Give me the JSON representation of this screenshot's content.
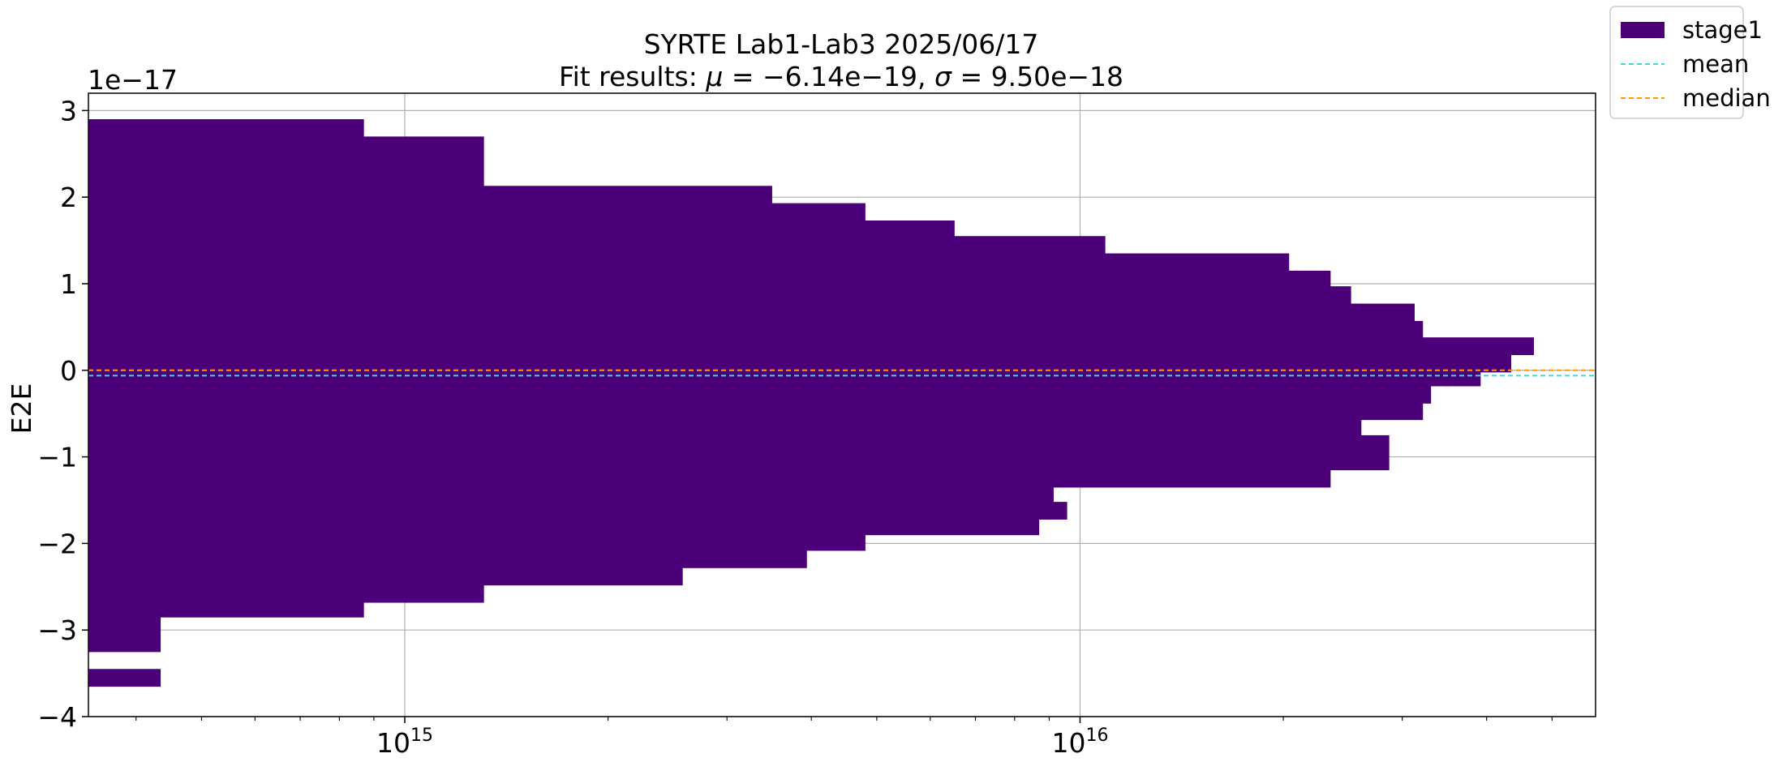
{
  "chart_data": {
    "type": "histogram-horizontal",
    "title_line1": "SYRTE Lab1-Lab3 2025/06/17",
    "title_line2_prefix": "Fit results: ",
    "mu": "−6.14e−19",
    "sigma": "9.50e−18",
    "ylabel": "E2E",
    "y_offset_label": "1e−17",
    "x_scale": "log",
    "xlim": [
      340000000000000,
      58000000000000000
    ],
    "ylim": [
      -4e-17,
      3.2e-17
    ],
    "x_ticks": [
      {
        "value": 1000000000000000.0,
        "base": "10",
        "exp": "15"
      },
      {
        "value": 1e+16,
        "base": "10",
        "exp": "16"
      }
    ],
    "y_ticks": [
      {
        "value": -4e-17,
        "label": "−4"
      },
      {
        "value": -3e-17,
        "label": "−3"
      },
      {
        "value": -2e-17,
        "label": "−2"
      },
      {
        "value": -1e-17,
        "label": "−1"
      },
      {
        "value": 0,
        "label": "0"
      },
      {
        "value": 1e-17,
        "label": "1"
      },
      {
        "value": 2e-17,
        "label": "2"
      },
      {
        "value": 3e-17,
        "label": "3"
      }
    ],
    "grid": true,
    "bar_color": "#4b0079",
    "bins": [
      {
        "y0": -3.65e-17,
        "y1": -3.45e-17,
        "count": 435000000000000
      },
      {
        "y0": -3.45e-17,
        "y1": -3.25e-17,
        "count": 0
      },
      {
        "y0": -3.25e-17,
        "y1": -2.85e-17,
        "count": 435000000000000
      },
      {
        "y0": -2.85e-17,
        "y1": -2.68e-17,
        "count": 870000000000000
      },
      {
        "y0": -2.68e-17,
        "y1": -2.48e-17,
        "count": 1310000000000000
      },
      {
        "y0": -2.48e-17,
        "y1": -2.28e-17,
        "count": 2580000000000000
      },
      {
        "y0": -2.28e-17,
        "y1": -2.08e-17,
        "count": 3940000000000000
      },
      {
        "y0": -2.08e-17,
        "y1": -1.9e-17,
        "count": 4810000000000000
      },
      {
        "y0": -1.9e-17,
        "y1": -1.72e-17,
        "count": 8700000000000000
      },
      {
        "y0": -1.72e-17,
        "y1": -1.52e-17,
        "count": 9570000000000000
      },
      {
        "y0": -1.52e-17,
        "y1": -1.35e-17,
        "count": 9140000000000000
      },
      {
        "y0": -1.35e-17,
        "y1": -1.15e-17,
        "count": 23500000000000000
      },
      {
        "y0": -1.15e-17,
        "y1": -7.5e-18,
        "count": 28700000000000000
      },
      {
        "y0": -7.5e-18,
        "y1": -5.7e-18,
        "count": 26100000000000000
      },
      {
        "y0": -5.7e-18,
        "y1": -3.8e-18,
        "count": 32200000000000000
      },
      {
        "y0": -3.8e-18,
        "y1": -1.8e-18,
        "count": 33100000000000000
      },
      {
        "y0": -1.8e-18,
        "y1": 0.0,
        "count": 39200000000000000
      },
      {
        "y0": -2e-19,
        "y1": 1.8e-18,
        "count": 43500000000000000
      },
      {
        "y0": 1.8e-18,
        "y1": 3.8e-18,
        "count": 47000000000000000
      },
      {
        "y0": 3.8e-18,
        "y1": 5.7e-18,
        "count": 32200000000000000
      },
      {
        "y0": 5.7e-18,
        "y1": 7.7e-18,
        "count": 31300000000000000
      },
      {
        "y0": 7.7e-18,
        "y1": 9.7e-18,
        "count": 25200000000000000
      },
      {
        "y0": 9.7e-18,
        "y1": 1.15e-17,
        "count": 23500000000000000
      },
      {
        "y0": 1.15e-17,
        "y1": 1.35e-17,
        "count": 20400000000000000
      },
      {
        "y0": 1.35e-17,
        "y1": 1.55e-17,
        "count": 10900000000000000
      },
      {
        "y0": 1.55e-17,
        "y1": 1.73e-17,
        "count": 6520000000000000
      },
      {
        "y0": 1.73e-17,
        "y1": 1.93e-17,
        "count": 4810000000000000
      },
      {
        "y0": 1.93e-17,
        "y1": 2.13e-17,
        "count": 3500000000000000
      },
      {
        "y0": 2.13e-17,
        "y1": 2.52e-17,
        "count": 1310000000000000
      },
      {
        "y0": 2.52e-17,
        "y1": 2.7e-17,
        "count": 1310000000000000
      },
      {
        "y0": 2.7e-17,
        "y1": 2.9e-17,
        "count": 870000000000000
      }
    ],
    "mean": -6.14e-19,
    "median": 0.0,
    "mean_color": "#40d8d8",
    "median_color": "#ff9a00",
    "legend": {
      "placement": "upper-right-outside",
      "entries": [
        {
          "label": "stage1",
          "kind": "patch",
          "color": "#4b0079"
        },
        {
          "label": "mean",
          "kind": "dashed",
          "color": "#40d8d8"
        },
        {
          "label": "median",
          "kind": "dashed",
          "color": "#ff9a00"
        }
      ]
    }
  }
}
